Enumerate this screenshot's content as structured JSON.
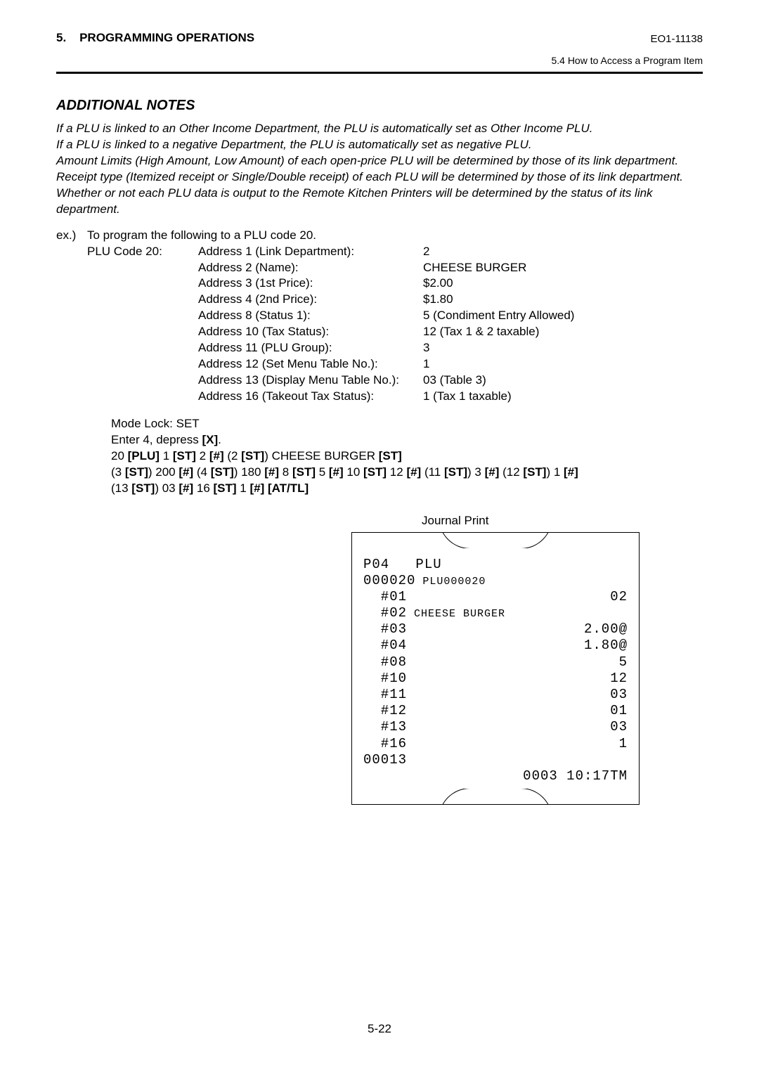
{
  "header": {
    "section_number": "5.",
    "section_title": "PROGRAMMING OPERATIONS",
    "doc_no": "EO1-11138",
    "subsection": "5.4  How to Access a Program Item"
  },
  "title": "ADDITIONAL  NOTES",
  "notes": [
    "If a PLU is linked to an Other Income Department, the PLU is automatically set as Other Income PLU.",
    "If a PLU is linked to a negative Department, the PLU is automatically set as negative PLU.",
    "Amount Limits (High Amount, Low Amount) of each open-price PLU will be determined by those of its link department.",
    "Receipt type (Itemized receipt or Single/Double receipt) of each PLU will be determined by those of its link department.",
    "Whether or not each PLU data is output to the Remote Kitchen Printers will be determined by the status of its link department."
  ],
  "example": {
    "intro_label": "ex.)",
    "intro_text": "To program the following to a PLU code 20.",
    "code_label": "PLU Code 20:",
    "rows": [
      {
        "c2": "Address 1 (Link Department):",
        "c3": "2"
      },
      {
        "c2": "Address 2 (Name):",
        "c3": "CHEESE BURGER"
      },
      {
        "c2": "Address 3 (1st Price):",
        "c3": "$2.00"
      },
      {
        "c2": "Address 4 (2nd Price):",
        "c3": "$1.80"
      },
      {
        "c2": "Address 8 (Status 1):",
        "c3": "5 (Condiment Entry Allowed)"
      },
      {
        "c2": "Address 10 (Tax Status):",
        "c3": "12 (Tax 1 & 2 taxable)"
      },
      {
        "c2": "Address 11 (PLU Group):",
        "c3": "3"
      },
      {
        "c2": "Address 12 (Set Menu Table No.):",
        "c3": "1"
      },
      {
        "c2": "Address 13 (Display Menu Table No.):",
        "c3": "03 (Table 3)"
      },
      {
        "c2": "Address 16 (Takeout Tax Status):",
        "c3": "1 (Tax 1 taxable)"
      }
    ]
  },
  "mode": {
    "l1": "Mode Lock:  SET",
    "l2_a": "Enter 4, depress ",
    "l2_b": "[X]",
    "l2_c": ".",
    "l3": [
      "20 ",
      "[PLU]",
      "  1 ",
      "[ST]",
      "  2 ",
      "[#]",
      "  (2 ",
      "[ST]",
      ")  CHEESE BURGER ",
      "[ST]"
    ],
    "l4": [
      "(3 ",
      "[ST]",
      ") 200 ",
      "[#]",
      "  (4 ",
      "[ST]",
      ") 180 ",
      "[#]",
      "  8 ",
      "[ST]",
      "  5 ",
      "[#]",
      "  10 ",
      "[ST]",
      "  12 ",
      "[#]",
      "  (11 ",
      "[ST]",
      ") 3 ",
      "[#]",
      "  (12 ",
      "[ST]",
      ") 1 ",
      "[#]"
    ],
    "l5": [
      "(13 ",
      "[ST]",
      ") 03 ",
      "[#]",
      "  16 ",
      "[ST]",
      "  1 ",
      "[#]",
      "  ",
      "[AT/TL]"
    ]
  },
  "journal": {
    "label": "Journal Print",
    "rows": [
      {
        "l": "P04   PLU",
        "r": ""
      },
      {
        "l": "000020",
        "m": "PLU000020",
        "r": ""
      },
      {
        "l": "  #01",
        "r": "02"
      },
      {
        "l": "  #02",
        "m": "CHEESE BURGER",
        "r": ""
      },
      {
        "l": "  #03",
        "r": "2.00@"
      },
      {
        "l": "  #04",
        "r": "1.80@"
      },
      {
        "l": "  #08",
        "r": "5"
      },
      {
        "l": "  #10",
        "r": "12"
      },
      {
        "l": "  #11",
        "r": "03"
      },
      {
        "l": "  #12",
        "r": "01"
      },
      {
        "l": "  #13",
        "r": "03"
      },
      {
        "l": "  #16",
        "r": "1"
      },
      {
        "l": "00013",
        "r": ""
      },
      {
        "l": "",
        "r": "0003 10:17TM"
      }
    ]
  },
  "page_number": "5-22"
}
